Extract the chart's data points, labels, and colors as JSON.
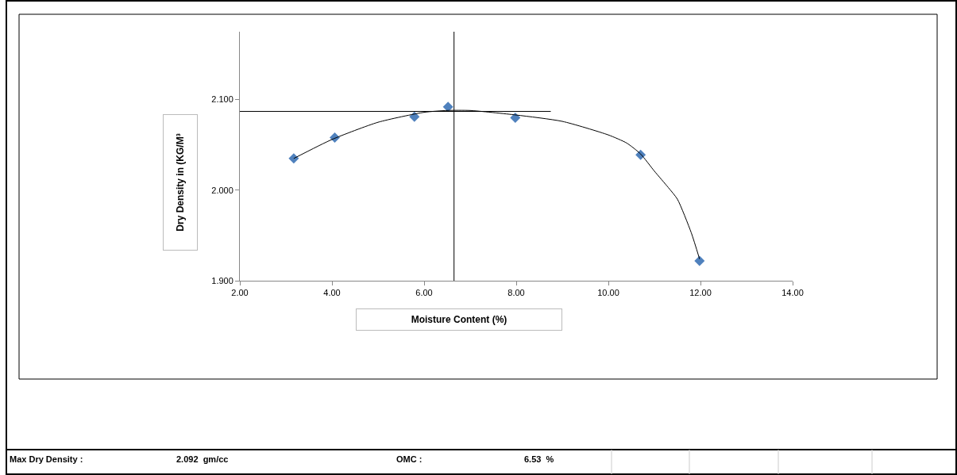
{
  "chart_data": {
    "type": "scatter",
    "xlabel": "Moisture Content (%)",
    "ylabel": "Dry Density in (KG/M³",
    "x": [
      3.17,
      4.06,
      5.79,
      6.52,
      7.98,
      10.7,
      11.98
    ],
    "series": [
      {
        "color": "#4f81bd",
        "values": [
          2.035,
          2.058,
          2.081,
          2.092,
          2.08,
          2.039,
          1.922
        ],
        "marker": "diamond"
      },
      {
        "type": "line",
        "color": "#000000",
        "marker": "none",
        "x": [
          3.17,
          4.0,
          5.0,
          6.0,
          6.5,
          7.0,
          8.0,
          9.0,
          10.0,
          10.4,
          10.7,
          11.0,
          11.3,
          11.5,
          11.8,
          11.98
        ],
        "values": [
          2.035,
          2.056,
          2.075,
          2.086,
          2.088,
          2.088,
          2.083,
          2.076,
          2.061,
          2.052,
          2.04,
          2.021,
          2.003,
          1.99,
          1.953,
          1.924
        ]
      }
    ],
    "xlim": [
      2.0,
      14.0
    ],
    "xticks": [
      {
        "value": 2,
        "label": "2.00"
      },
      {
        "value": 4,
        "label": "4.00"
      },
      {
        "value": 6,
        "label": "6.00"
      },
      {
        "value": 8,
        "label": "8.00"
      },
      {
        "value": 10,
        "label": "10.00"
      },
      {
        "value": 12,
        "label": "12.00"
      },
      {
        "value": 14,
        "label": "14.00"
      }
    ],
    "ylim": [
      1.9,
      2.175
    ],
    "yticks": [
      {
        "value": 1.9,
        "label": "1.900"
      },
      {
        "value": 2.0,
        "label": "2.000"
      },
      {
        "value": 2.1,
        "label": "2.100"
      }
    ],
    "ref_lines": [
      {
        "axis": "y",
        "value": 2.087,
        "color": "#000000"
      },
      {
        "axis": "x",
        "value": 6.65,
        "color": "#000000"
      }
    ],
    "annotations": [
      "Max Dry Density :",
      "2.092  gm/cc",
      "OMC :",
      "6.53  %"
    ]
  }
}
